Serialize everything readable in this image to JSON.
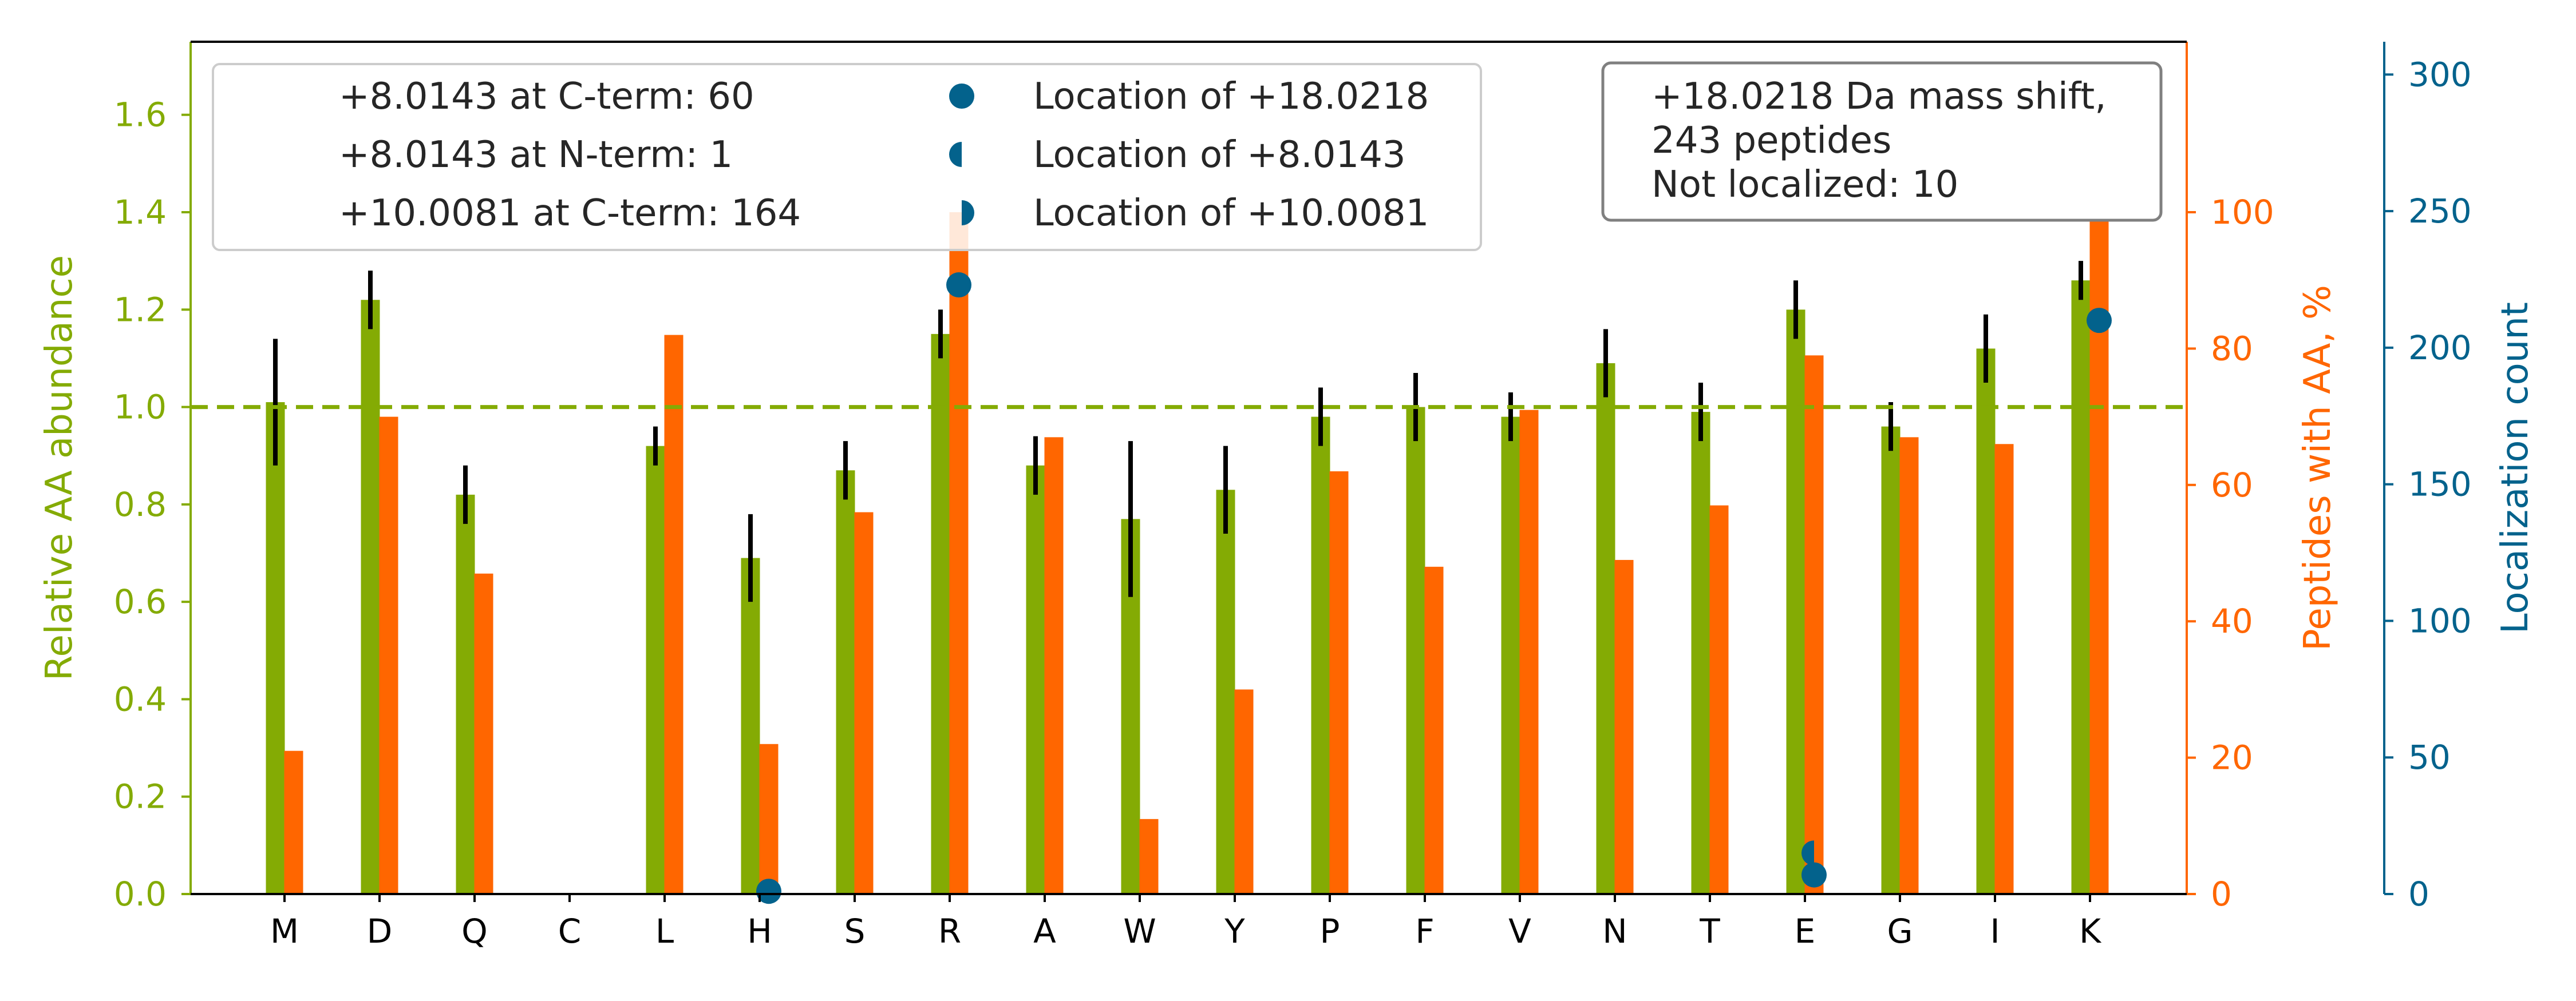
{
  "chart_data": {
    "type": "bar",
    "categories": [
      "M",
      "D",
      "Q",
      "C",
      "L",
      "H",
      "S",
      "R",
      "A",
      "W",
      "Y",
      "P",
      "F",
      "V",
      "N",
      "T",
      "E",
      "G",
      "I",
      "K"
    ],
    "left_axis": {
      "label": "Relative AA abundance",
      "ylim": [
        0,
        1.75
      ],
      "ticks": [
        "0.0",
        "0.2",
        "0.4",
        "0.6",
        "0.8",
        "1.0",
        "1.2",
        "1.4",
        "1.6"
      ],
      "color": "#84ab04"
    },
    "right_axis": {
      "label": "Peptides with AA, %",
      "ylim": [
        0,
        125
      ],
      "ticks": [
        "0",
        "20",
        "40",
        "60",
        "80",
        "100"
      ],
      "color": "#ff6600"
    },
    "far_right_axis": {
      "label": "Localization count",
      "ylim": [
        0,
        312
      ],
      "ticks": [
        "0",
        "50",
        "100",
        "150",
        "200",
        "250",
        "300"
      ],
      "color": "#03628c"
    },
    "series": [
      {
        "name": "Relative AA abundance",
        "axis": "left",
        "color": "#84ab04",
        "values": [
          1.01,
          1.22,
          0.82,
          0,
          0.92,
          0.69,
          0.87,
          1.15,
          0.88,
          0.77,
          0.83,
          0.98,
          1.0,
          0.98,
          1.09,
          0.99,
          1.2,
          0.96,
          1.12,
          1.26
        ],
        "errors": [
          0.13,
          0.06,
          0.06,
          0,
          0.04,
          0.09,
          0.06,
          0.05,
          0.06,
          0.16,
          0.09,
          0.06,
          0.07,
          0.05,
          0.07,
          0.06,
          0.06,
          0.05,
          0.07,
          0.04
        ]
      },
      {
        "name": "Peptides with AA, %",
        "axis": "right",
        "color": "#ff6600",
        "values": [
          21,
          70,
          47,
          0,
          82,
          22,
          56,
          100,
          67,
          11,
          30,
          62,
          48,
          71,
          49,
          57,
          79,
          67,
          66,
          100
        ]
      }
    ],
    "reference_line": {
      "value": 1.0,
      "axis": "left",
      "style": "dashed",
      "color": "#84ab04"
    },
    "localization_points": [
      {
        "category": "H",
        "count": 1,
        "marker": "full"
      },
      {
        "category": "R",
        "count": 223,
        "marker": "full"
      },
      {
        "category": "E",
        "count": 15,
        "marker": "half-left"
      },
      {
        "category": "E",
        "count": 7,
        "marker": "full"
      },
      {
        "category": "K",
        "count": 210,
        "marker": "full"
      }
    ],
    "marker_color": "#03628c",
    "legend": {
      "placement": "top-left",
      "entries": [
        {
          "text": "+8.0143 at C-term: 60",
          "marker": "none"
        },
        {
          "text": "+8.0143 at N-term: 1",
          "marker": "none"
        },
        {
          "text": "+10.0081 at C-term: 164",
          "marker": "none"
        },
        {
          "text": "Location of +18.0218",
          "marker": "full"
        },
        {
          "text": "Location of +8.0143",
          "marker": "half-left"
        },
        {
          "text": "Location of +10.0081",
          "marker": "half-right"
        }
      ]
    },
    "annotation": {
      "placement": "top-right",
      "lines": [
        "+18.0218 Da mass shift,",
        "243 peptides",
        "Not localized: 10"
      ]
    }
  }
}
